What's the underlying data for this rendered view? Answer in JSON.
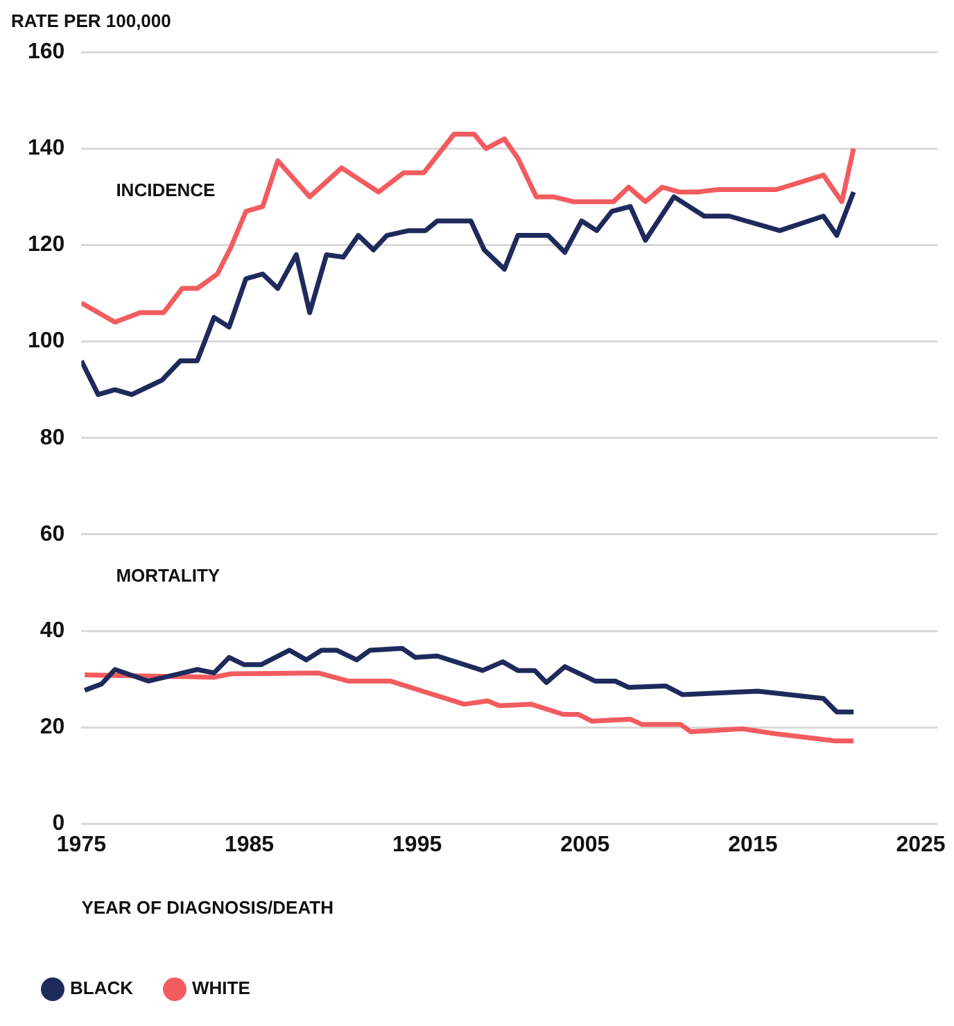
{
  "chart_data": {
    "type": "line",
    "ylabel": "RATE PER 100,000",
    "xlabel": "YEAR OF DIAGNOSIS/DEATH",
    "annotations": [
      "INCIDENCE",
      "MORTALITY"
    ],
    "xlim": [
      1975,
      2026
    ],
    "xticks": [
      1975,
      1985,
      1995,
      2005,
      2015,
      2025
    ],
    "ylim": [
      0,
      160
    ],
    "yticks": [
      0,
      20,
      40,
      60,
      80,
      100,
      120,
      140,
      160
    ],
    "grid": "y",
    "legend": "bottom left",
    "marker": "none",
    "line_style": "solid",
    "series": [
      {
        "name": "BLACK",
        "color": "#1f2a5c",
        "x": [
          1975,
          1976,
          1977,
          1978,
          1978.9,
          1979.8,
          1980.9,
          1981.9,
          1982.9,
          1983.8,
          1984.8,
          1985.8,
          1986.7,
          1987.8,
          1988.6,
          1989.6,
          1990.6,
          1991.5,
          1992.4,
          1993.2,
          1994.5,
          1995.5,
          1996.2,
          1997.5,
          1998.2,
          1999,
          2000.2,
          2001,
          2002.8,
          2003.8,
          2004.8,
          2005.7,
          2006.6,
          2007.7,
          2008.6,
          2010.3,
          2012.1,
          2013.6,
          2016.6,
          2019.2,
          2020,
          2021
        ],
        "values": [
          96,
          89,
          90,
          89,
          90.5,
          92,
          96,
          96,
          105,
          103,
          113,
          114,
          111,
          118,
          106,
          118,
          117.5,
          122,
          119,
          122,
          123,
          123,
          125,
          125,
          125,
          119,
          115,
          122,
          122,
          118.5,
          125,
          123,
          127,
          128,
          121,
          130,
          126,
          126,
          123,
          126,
          122,
          131
        ]
      },
      {
        "name": "WHITE",
        "color": "#f25c5f",
        "x": [
          1975,
          1977,
          1978.5,
          1979.9,
          1981,
          1981.9,
          1983.1,
          1983.9,
          1984.8,
          1985.8,
          1986.7,
          1988.6,
          1990.5,
          1992.7,
          1994.2,
          1995.4,
          1997.2,
          1998.4,
          1999.1,
          2000.2,
          2001,
          2002.1,
          2003.1,
          2004.3,
          2005.7,
          2006.7,
          2007.6,
          2008.6,
          2009.6,
          2010.6,
          2011.7,
          2012.9,
          2016.4,
          2019.2,
          2020.3,
          2021
        ],
        "values": [
          108,
          104,
          106,
          106,
          111,
          111,
          114,
          119.5,
          127,
          128,
          137.5,
          130,
          136,
          131,
          135,
          135,
          143,
          143,
          140,
          142,
          138,
          130,
          130,
          129,
          129,
          129,
          132,
          129,
          132,
          131,
          131,
          131.5,
          131.5,
          134.5,
          129,
          140
        ]
      },
      {
        "color": "#1f2a5c",
        "x": [
          1975.2,
          1976.2,
          1977,
          1979,
          1981.9,
          1982.9,
          1983.8,
          1984.7,
          1985.7,
          1987.4,
          1988.4,
          1989.3,
          1990.2,
          1991.4,
          1992.2,
          1994.1,
          1994.9,
          1996.2,
          1998.9,
          2000.1,
          2001,
          2002,
          2002.7,
          2003.8,
          2005.6,
          2006.8,
          2007.6,
          2009.8,
          2010.8,
          2015.3,
          2019.2,
          2020,
          2021
        ],
        "values": [
          27.7,
          29,
          32,
          29.6,
          32,
          31.3,
          34.5,
          33,
          33,
          36,
          34,
          36,
          36,
          34,
          36,
          36.4,
          34.5,
          34.8,
          31.8,
          33.6,
          31.8,
          31.8,
          29.3,
          32.6,
          29.6,
          29.6,
          28.3,
          28.6,
          26.8,
          27.5,
          26,
          23.2,
          23.2
        ]
      },
      {
        "color": "#f25c5f",
        "x": [
          1975.2,
          1982.9,
          1983.9,
          1989.1,
          1990.9,
          1993.4,
          1997.8,
          1999.2,
          1999.9,
          2001.8,
          2003.7,
          2004.6,
          2005.4,
          2007.7,
          2008.4,
          2010.7,
          2011.3,
          2014.4,
          2016.3,
          2019.9,
          2021
        ],
        "values": [
          30.9,
          30.4,
          31.1,
          31.3,
          29.6,
          29.6,
          24.8,
          25.5,
          24.5,
          24.8,
          22.7,
          22.7,
          21.3,
          21.7,
          20.6,
          20.6,
          19.1,
          19.7,
          18.7,
          17.2,
          17.2
        ]
      }
    ]
  }
}
